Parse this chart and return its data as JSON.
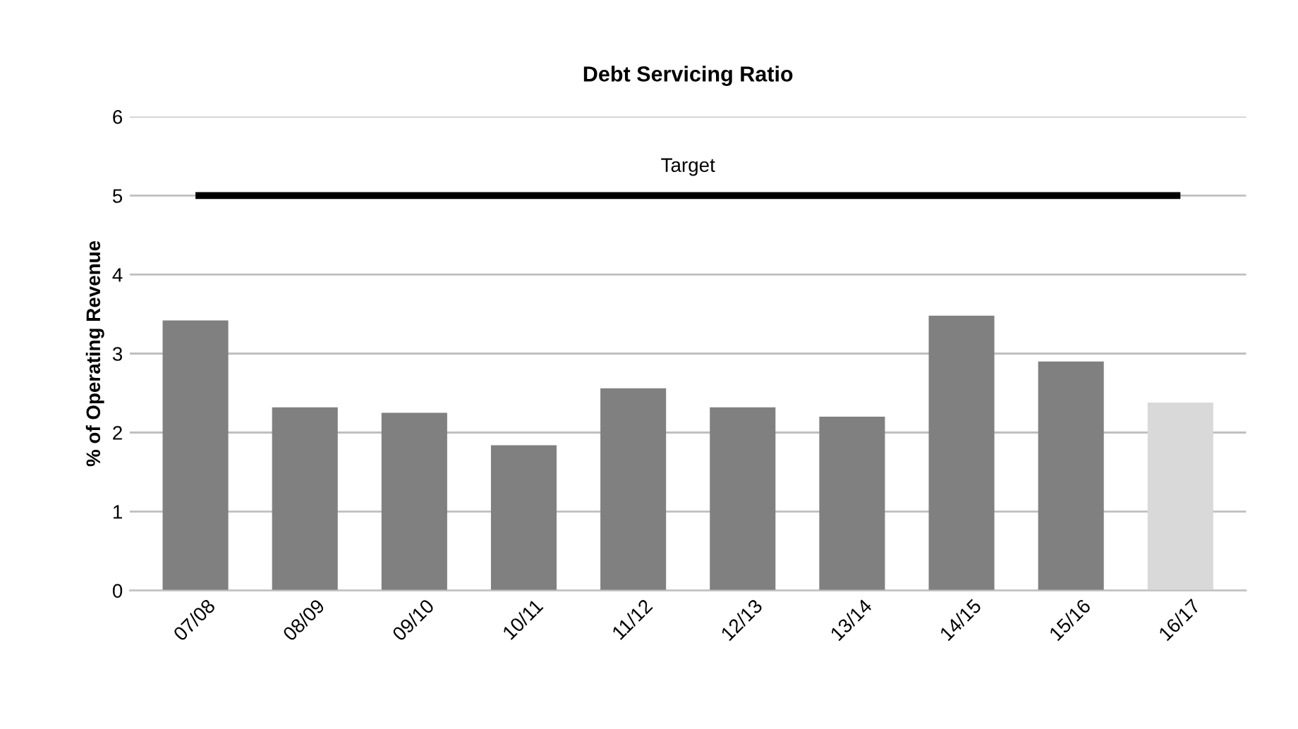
{
  "chart_data": {
    "type": "bar",
    "title": "Debt Servicing Ratio",
    "ylabel": "% of Operating Revenue",
    "categories": [
      "07/08",
      "08/09",
      "09/10",
      "10/11",
      "11/12",
      "12/13",
      "13/14",
      "14/15",
      "15/16",
      "16/17"
    ],
    "series": [
      {
        "colors": [
          "#808080",
          "#808080",
          "#808080",
          "#808080",
          "#808080",
          "#808080",
          "#808080",
          "#808080",
          "#808080",
          "#d9d9d9"
        ],
        "values": [
          3.42,
          2.32,
          2.25,
          1.84,
          2.56,
          2.32,
          2.2,
          3.48,
          2.9,
          2.38
        ]
      },
      {
        "type": "line",
        "name": "Target",
        "color": "#000000",
        "values": [
          5,
          5,
          5,
          5,
          5,
          5,
          5,
          5,
          5,
          5
        ]
      }
    ],
    "ylim": [
      0,
      6
    ],
    "yticks": [
      0,
      1,
      2,
      3,
      4,
      5,
      6
    ],
    "grid": "y",
    "legend": false
  }
}
